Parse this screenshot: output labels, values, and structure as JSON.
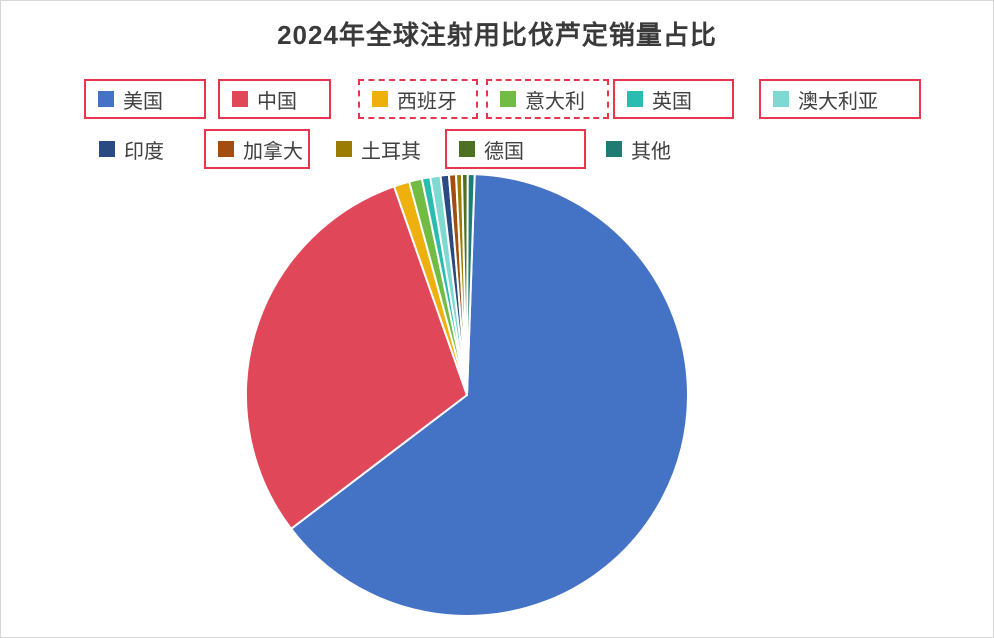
{
  "chart_data": {
    "type": "pie",
    "title": "2024年全球注射用比伐芦定销量占比",
    "categories": [
      "美国",
      "中国",
      "西班牙",
      "意大利",
      "英国",
      "澳大利亚",
      "印度",
      "加拿大",
      "土耳其",
      "德国",
      "其他"
    ],
    "values": [
      64.1,
      30.0,
      1.14,
      0.94,
      0.61,
      0.75,
      0.61,
      0.51,
      0.43,
      0.42,
      0.5
    ],
    "unit": "percent",
    "colors": [
      "#4472C4",
      "#E0485A",
      "#EDB00C",
      "#72BC44",
      "#2ABCAE",
      "#7DD9D1",
      "#2A4A83",
      "#A14E10",
      "#9C7C00",
      "#4D7022",
      "#1F7C72"
    ],
    "slice_border_color": "#FFFFFF",
    "legend_position": "top",
    "start_angle_deg": 2
  },
  "legend": {
    "items": [
      {
        "key": "usa",
        "label": "美国",
        "box": "solid"
      },
      {
        "key": "china",
        "label": "中国",
        "box": "solid"
      },
      {
        "key": "spain",
        "label": "西班牙",
        "box": "dashed"
      },
      {
        "key": "italy",
        "label": "意大利",
        "box": "dashed"
      },
      {
        "key": "uk",
        "label": "英国",
        "box": "solid"
      },
      {
        "key": "australia",
        "label": "澳大利亚",
        "box": "solid"
      },
      {
        "key": "india",
        "label": "印度",
        "box": "none"
      },
      {
        "key": "canada",
        "label": "加拿大",
        "box": "solid"
      },
      {
        "key": "turkey",
        "label": "土耳其",
        "box": "none"
      },
      {
        "key": "germany",
        "label": "德国",
        "box": "solid"
      },
      {
        "key": "other",
        "label": "其他",
        "box": "none"
      }
    ]
  },
  "annotation": {
    "box_color": "#E8364F"
  },
  "frame": {
    "border_color": "#D6D6D6",
    "background": "#FFFFFF"
  }
}
